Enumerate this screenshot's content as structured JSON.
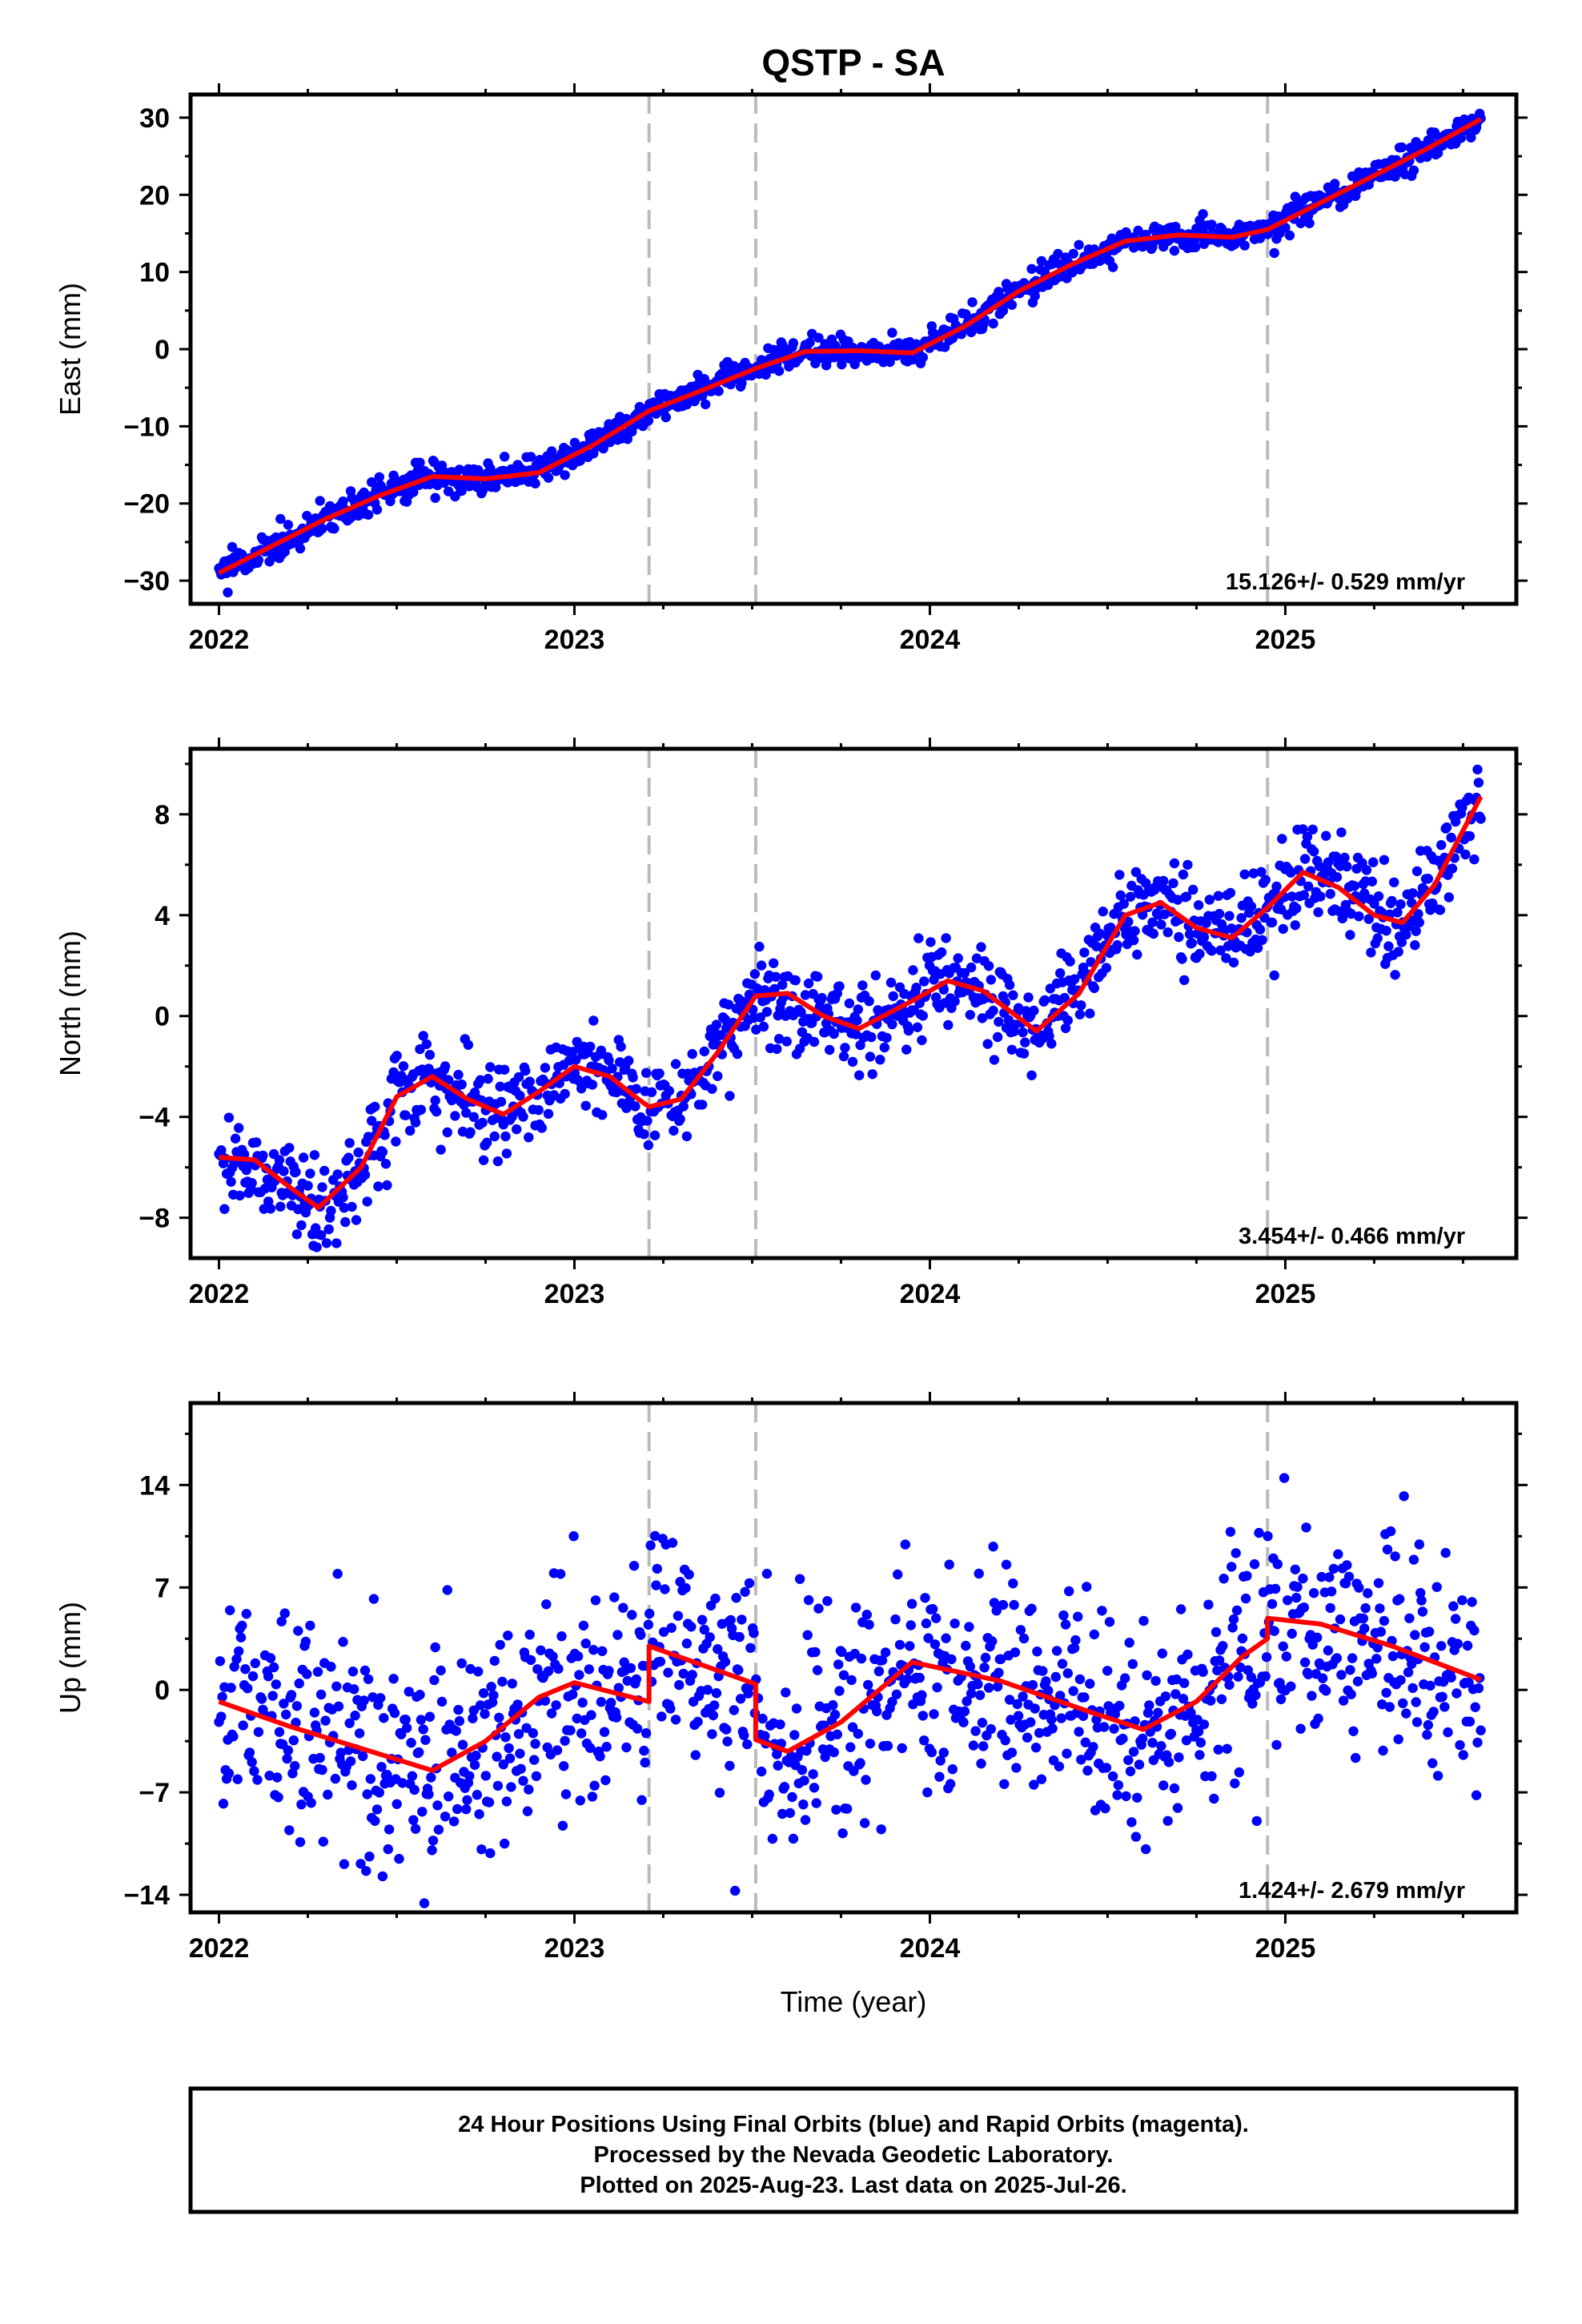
{
  "figure": {
    "title": "QSTP - SA",
    "xlabel": "Time (year)",
    "colors": {
      "points": "#0000ff",
      "model": "#ff0000",
      "offset_lines": "#bbbbbb",
      "frame": "#000000"
    },
    "footer": [
      "24 Hour Positions Using Final Orbits (blue) and Rapid Orbits (magenta).",
      "Processed by the Nevada Geodetic Laboratory.",
      "Plotted on 2025-Aug-23. Last data on 2025-Jul-26."
    ]
  },
  "chart_data": [
    {
      "type": "scatter",
      "component": "east",
      "ylabel": "East (mm)",
      "xlim": [
        2021.92,
        2025.65
      ],
      "ylim": [
        -33,
        33
      ],
      "xticks": [
        2022,
        2023,
        2024,
        2025
      ],
      "yticks": [
        -30,
        -20,
        -10,
        0,
        10,
        20,
        30
      ],
      "offset_epochs": [
        2023.21,
        2023.51,
        2024.95
      ],
      "rate_label": "15.126+/- 0.529 mm/yr",
      "scatter_sigma": 1.0,
      "model": {
        "name": "",
        "x": [
          2022.0,
          2022.15,
          2022.3,
          2022.45,
          2022.6,
          2022.75,
          2022.9,
          2023.05,
          2023.21,
          2023.35,
          2023.51,
          2023.65,
          2023.8,
          2023.95,
          2024.1,
          2024.25,
          2024.4,
          2024.55,
          2024.7,
          2024.85,
          2024.95,
          2025.1,
          2025.25,
          2025.4,
          2025.55
        ],
        "y": [
          -29.0,
          -25.5,
          -22.0,
          -19.0,
          -16.5,
          -16.8,
          -16.0,
          -12.5,
          -8.0,
          -5.5,
          -2.5,
          -0.3,
          -0.2,
          -0.5,
          3.0,
          7.5,
          11.0,
          14.0,
          14.8,
          14.5,
          15.5,
          19.0,
          22.5,
          26.0,
          29.8
        ]
      }
    },
    {
      "type": "scatter",
      "component": "north",
      "ylabel": "North (mm)",
      "xlim": [
        2021.92,
        2025.65
      ],
      "ylim": [
        -9.6,
        10.6
      ],
      "xticks": [
        2022,
        2023,
        2024,
        2025
      ],
      "yticks": [
        -8,
        -4,
        0,
        4,
        8
      ],
      "offset_epochs": [
        2023.21,
        2023.51,
        2024.95
      ],
      "rate_label": "3.454+/- 0.466 mm/yr",
      "scatter_sigma": 0.9,
      "model": {
        "name": "",
        "x": [
          2022.0,
          2022.1,
          2022.2,
          2022.28,
          2022.4,
          2022.5,
          2022.6,
          2022.7,
          2022.8,
          2022.9,
          2023.0,
          2023.1,
          2023.18,
          2023.21,
          2023.3,
          2023.4,
          2023.51,
          2023.6,
          2023.7,
          2023.8,
          2023.95,
          2024.05,
          2024.15,
          2024.3,
          2024.42,
          2024.55,
          2024.65,
          2024.75,
          2024.85,
          2024.95,
          2025.05,
          2025.15,
          2025.25,
          2025.33,
          2025.42,
          2025.55
        ],
        "y": [
          -5.6,
          -5.7,
          -6.8,
          -7.6,
          -6.0,
          -3.2,
          -2.4,
          -3.3,
          -3.9,
          -3.0,
          -2.0,
          -2.4,
          -3.3,
          -3.6,
          -3.3,
          -1.5,
          0.8,
          0.9,
          0.0,
          -0.5,
          0.6,
          1.4,
          1.0,
          -0.6,
          0.9,
          4.0,
          4.5,
          3.5,
          3.1,
          4.3,
          5.7,
          5.1,
          4.0,
          3.7,
          5.2,
          8.7
        ]
      }
    },
    {
      "type": "scatter",
      "component": "up",
      "ylabel": "Up (mm)",
      "xlim": [
        2021.92,
        2025.65
      ],
      "ylim": [
        -15.2,
        19.6
      ],
      "xticks": [
        2022,
        2023,
        2024,
        2025
      ],
      "yticks": [
        -14,
        -7,
        0,
        7,
        14
      ],
      "offset_epochs": [
        2023.21,
        2023.51,
        2024.95
      ],
      "rate_label": "1.424+/- 2.679 mm/yr",
      "scatter_sigma": 3.6,
      "model": {
        "name": "",
        "x": [
          2022.0,
          2022.2,
          2022.4,
          2022.6,
          2022.75,
          2022.9,
          2023.0,
          2023.21,
          2023.21,
          2023.51,
          2023.51,
          2023.6,
          2023.75,
          2023.95,
          2024.2,
          2024.45,
          2024.6,
          2024.75,
          2024.88,
          2024.95,
          2024.95,
          2025.1,
          2025.3,
          2025.55
        ],
        "y": [
          -0.8,
          -2.5,
          -4.0,
          -5.5,
          -3.5,
          -0.5,
          0.5,
          -0.8,
          3.0,
          0.4,
          -3.4,
          -4.2,
          -2.2,
          1.9,
          0.6,
          -1.5,
          -2.7,
          -0.8,
          2.3,
          3.5,
          4.9,
          4.5,
          3.0,
          0.7
        ]
      }
    }
  ]
}
